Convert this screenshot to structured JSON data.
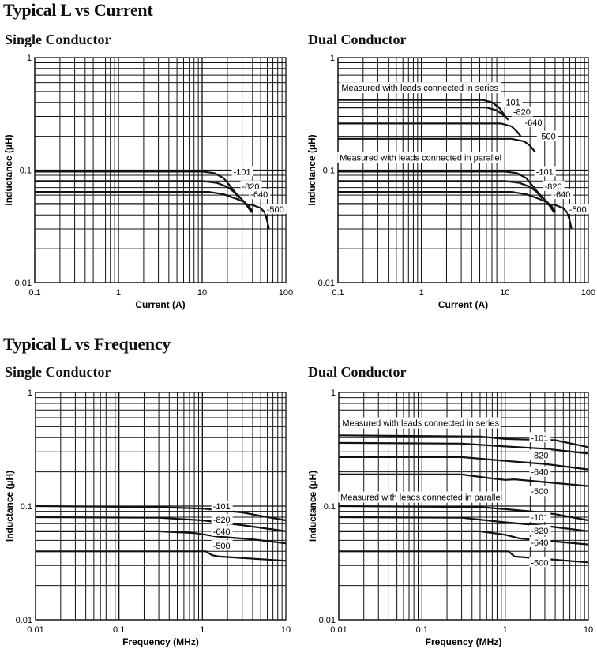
{
  "sections": [
    {
      "title": "Typical L vs Current",
      "subtitles": [
        "Single Conductor",
        "Dual Conductor"
      ]
    },
    {
      "title": "Typical L vs Frequency",
      "subtitles": [
        "Single Conductor",
        "Dual Conductor"
      ]
    }
  ],
  "chart_data": [
    {
      "type": "line",
      "title": "Single Conductor",
      "xlabel": "Current (A)",
      "ylabel": "Inductance (µH)",
      "xscale": "log",
      "yscale": "log",
      "xlim": [
        0.1,
        100
      ],
      "ylim": [
        0.01,
        1
      ],
      "xticks": [
        "0.1",
        "1",
        "10",
        "100"
      ],
      "yticks": [
        "0.01",
        "0.1",
        "1"
      ],
      "grid": true,
      "series": [
        {
          "name": "-101",
          "points": [
            [
              0.1,
              0.097
            ],
            [
              10,
              0.097
            ],
            [
              14,
              0.094
            ],
            [
              18,
              0.085
            ],
            [
              21,
              0.074
            ],
            [
              25,
              0.063
            ],
            [
              32,
              0.052
            ],
            [
              39,
              0.042
            ]
          ],
          "label_at": [
            30,
            0.097
          ]
        },
        {
          "name": "-820",
          "points": [
            [
              0.1,
              0.08
            ],
            [
              10,
              0.08
            ],
            [
              15,
              0.077
            ],
            [
              20,
              0.071
            ],
            [
              24,
              0.064
            ],
            [
              28,
              0.056
            ]
          ],
          "label_at": [
            38,
            0.072
          ]
        },
        {
          "name": "-640",
          "points": [
            [
              0.1,
              0.064
            ],
            [
              12,
              0.064
            ],
            [
              18,
              0.061
            ],
            [
              25,
              0.056
            ],
            [
              32,
              0.052
            ],
            [
              36,
              0.048
            ],
            [
              40,
              0.043
            ]
          ],
          "label_at": [
            48,
            0.061
          ]
        },
        {
          "name": "-500",
          "points": [
            [
              0.1,
              0.05
            ],
            [
              30,
              0.05
            ],
            [
              40,
              0.049
            ],
            [
              50,
              0.046
            ],
            [
              56,
              0.042
            ],
            [
              60,
              0.035
            ],
            [
              63,
              0.03
            ]
          ],
          "label_at": [
            75,
            0.045
          ]
        }
      ],
      "annotations": []
    },
    {
      "type": "line",
      "title": "Dual Conductor",
      "xlabel": "Current (A)",
      "ylabel": "Inductance (µH)",
      "xscale": "log",
      "yscale": "log",
      "xlim": [
        0.1,
        100
      ],
      "ylim": [
        0.01,
        1
      ],
      "xticks": [
        "0.1",
        "1",
        "10",
        "100"
      ],
      "yticks": [
        "0.01",
        "0.1",
        "1"
      ],
      "grid": true,
      "series": [
        {
          "name": "-101",
          "group": "series",
          "points": [
            [
              0.1,
              0.42
            ],
            [
              5.5,
              0.42
            ],
            [
              7,
              0.4
            ],
            [
              8.5,
              0.36
            ],
            [
              10.5,
              0.29
            ]
          ],
          "label_at": [
            12,
            0.4
          ]
        },
        {
          "name": "-820",
          "group": "series",
          "points": [
            [
              0.1,
              0.36
            ],
            [
              6,
              0.36
            ],
            [
              8,
              0.34
            ],
            [
              10,
              0.3
            ],
            [
              11,
              0.28
            ]
          ],
          "label_at": [
            16,
            0.33
          ]
        },
        {
          "name": "-640",
          "group": "series",
          "points": [
            [
              0.1,
              0.26
            ],
            [
              9,
              0.26
            ],
            [
              12,
              0.245
            ],
            [
              14,
              0.22
            ],
            [
              15.5,
              0.2
            ]
          ],
          "label_at": [
            22,
            0.265
          ]
        },
        {
          "name": "-500",
          "group": "series",
          "points": [
            [
              0.1,
              0.19
            ],
            [
              12,
              0.19
            ],
            [
              17,
              0.18
            ],
            [
              20,
              0.165
            ],
            [
              23,
              0.145
            ]
          ],
          "label_at": [
            32,
            0.2
          ]
        },
        {
          "name": "-101",
          "group": "parallel",
          "points": [
            [
              0.1,
              0.097
            ],
            [
              10,
              0.097
            ],
            [
              14,
              0.094
            ],
            [
              18,
              0.085
            ],
            [
              21,
              0.074
            ],
            [
              25,
              0.063
            ],
            [
              32,
              0.052
            ],
            [
              39,
              0.042
            ]
          ],
          "label_at": [
            30,
            0.097
          ]
        },
        {
          "name": "-820",
          "group": "parallel",
          "points": [
            [
              0.1,
              0.08
            ],
            [
              10,
              0.08
            ],
            [
              15,
              0.077
            ],
            [
              20,
              0.071
            ],
            [
              24,
              0.064
            ],
            [
              28,
              0.056
            ]
          ],
          "label_at": [
            38,
            0.072
          ]
        },
        {
          "name": "-640",
          "group": "parallel",
          "points": [
            [
              0.1,
              0.064
            ],
            [
              12,
              0.064
            ],
            [
              18,
              0.061
            ],
            [
              25,
              0.056
            ],
            [
              32,
              0.052
            ],
            [
              36,
              0.048
            ],
            [
              40,
              0.043
            ]
          ],
          "label_at": [
            48,
            0.061
          ]
        },
        {
          "name": "-500",
          "group": "parallel",
          "points": [
            [
              0.1,
              0.05
            ],
            [
              30,
              0.05
            ],
            [
              40,
              0.049
            ],
            [
              50,
              0.046
            ],
            [
              56,
              0.042
            ],
            [
              60,
              0.035
            ],
            [
              63,
              0.03
            ]
          ],
          "label_at": [
            75,
            0.045
          ]
        }
      ],
      "annotations": [
        {
          "text": "Measured with leads connected in series",
          "at": [
            0.11,
            0.54
          ]
        },
        {
          "text": "Measured with leads connected in parallel",
          "at": [
            0.105,
            0.13
          ]
        }
      ]
    },
    {
      "type": "line",
      "title": "Single Conductor",
      "xlabel": "Frequency (MHz)",
      "ylabel": "Inductance (µH)",
      "xscale": "log",
      "yscale": "log",
      "xlim": [
        0.01,
        10
      ],
      "ylim": [
        0.01,
        1
      ],
      "xticks": [
        "0.01",
        "0.1",
        "1",
        "10"
      ],
      "yticks": [
        "0.01",
        "0.1",
        "1"
      ],
      "grid": true,
      "series": [
        {
          "name": "-101",
          "points": [
            [
              0.01,
              0.1
            ],
            [
              0.3,
              0.098
            ],
            [
              1,
              0.095
            ],
            [
              3,
              0.088
            ],
            [
              5,
              0.082
            ],
            [
              10,
              0.075
            ]
          ],
          "label_at": [
            1.7,
            0.1
          ]
        },
        {
          "name": "-820",
          "points": [
            [
              0.01,
              0.08
            ],
            [
              0.3,
              0.079
            ],
            [
              1,
              0.075
            ],
            [
              3,
              0.068
            ],
            [
              10,
              0.06
            ]
          ],
          "label_at": [
            1.7,
            0.076
          ]
        },
        {
          "name": "-640",
          "points": [
            [
              0.01,
              0.06
            ],
            [
              0.3,
              0.06
            ],
            [
              0.8,
              0.058
            ],
            [
              1.5,
              0.054
            ],
            [
              4,
              0.051
            ],
            [
              10,
              0.047
            ]
          ],
          "label_at": [
            1.7,
            0.06
          ]
        },
        {
          "name": "-500",
          "points": [
            [
              0.01,
              0.04
            ],
            [
              1.1,
              0.04
            ],
            [
              1.3,
              0.037
            ],
            [
              1.6,
              0.036
            ],
            [
              10,
              0.033
            ]
          ],
          "label_at": [
            1.7,
            0.045
          ]
        }
      ],
      "annotations": []
    },
    {
      "type": "line",
      "title": "Dual Conductor",
      "xlabel": "Frequency (MHz)",
      "ylabel": "Inductance (µH)",
      "xscale": "log",
      "yscale": "log",
      "xlim": [
        0.01,
        10
      ],
      "ylim": [
        0.01,
        1
      ],
      "xticks": [
        "0.01",
        "0.1",
        "1",
        "10"
      ],
      "yticks": [
        "0.01",
        "0.1",
        "1"
      ],
      "grid": true,
      "series": [
        {
          "name": "-101",
          "group": "series",
          "points": [
            [
              0.01,
              0.42
            ],
            [
              0.5,
              0.41
            ],
            [
              1,
              0.39
            ],
            [
              4,
              0.38
            ],
            [
              10,
              0.33
            ]
          ],
          "label_at": [
            2.6,
            0.4
          ]
        },
        {
          "name": "-820",
          "group": "series",
          "points": [
            [
              0.01,
              0.36
            ],
            [
              0.3,
              0.355
            ],
            [
              1,
              0.335
            ],
            [
              3,
              0.32
            ],
            [
              10,
              0.29
            ]
          ],
          "label_at": [
            2.6,
            0.28
          ]
        },
        {
          "name": "-640",
          "group": "series",
          "points": [
            [
              0.01,
              0.27
            ],
            [
              0.3,
              0.27
            ],
            [
              1,
              0.25
            ],
            [
              3,
              0.235
            ],
            [
              10,
              0.21
            ]
          ],
          "label_at": [
            2.6,
            0.2
          ]
        },
        {
          "name": "-500",
          "group": "series",
          "points": [
            [
              0.01,
              0.19
            ],
            [
              0.3,
              0.19
            ],
            [
              0.7,
              0.175
            ],
            [
              1,
              0.17
            ],
            [
              1.3,
              0.172
            ],
            [
              10,
              0.15
            ]
          ],
          "label_at": [
            2.6,
            0.135
          ]
        },
        {
          "name": "-101",
          "group": "parallel",
          "points": [
            [
              0.01,
              0.1
            ],
            [
              0.5,
              0.098
            ],
            [
              1,
              0.094
            ],
            [
              2,
              0.09
            ],
            [
              4,
              0.085
            ],
            [
              10,
              0.075
            ]
          ],
          "label_at": [
            2.6,
            0.08
          ]
        },
        {
          "name": "-820",
          "group": "parallel",
          "points": [
            [
              0.01,
              0.08
            ],
            [
              0.3,
              0.079
            ],
            [
              1,
              0.072
            ],
            [
              3,
              0.067
            ],
            [
              10,
              0.06
            ]
          ],
          "label_at": [
            2.6,
            0.061
          ]
        },
        {
          "name": "-640",
          "group": "parallel",
          "points": [
            [
              0.01,
              0.06
            ],
            [
              0.5,
              0.06
            ],
            [
              1,
              0.056
            ],
            [
              1.5,
              0.052
            ],
            [
              10,
              0.046
            ]
          ],
          "label_at": [
            2.6,
            0.048
          ]
        },
        {
          "name": "-500",
          "group": "parallel",
          "points": [
            [
              0.01,
              0.04
            ],
            [
              1.1,
              0.04
            ],
            [
              1.3,
              0.036
            ],
            [
              10,
              0.032
            ]
          ],
          "label_at": [
            2.6,
            0.032
          ]
        }
      ],
      "annotations": [
        {
          "text": "Measured with leads connected in series",
          "at": [
            0.011,
            0.54
          ]
        },
        {
          "text": "Measured with leads connected in parallel",
          "at": [
            0.0105,
            0.12
          ]
        }
      ]
    }
  ]
}
